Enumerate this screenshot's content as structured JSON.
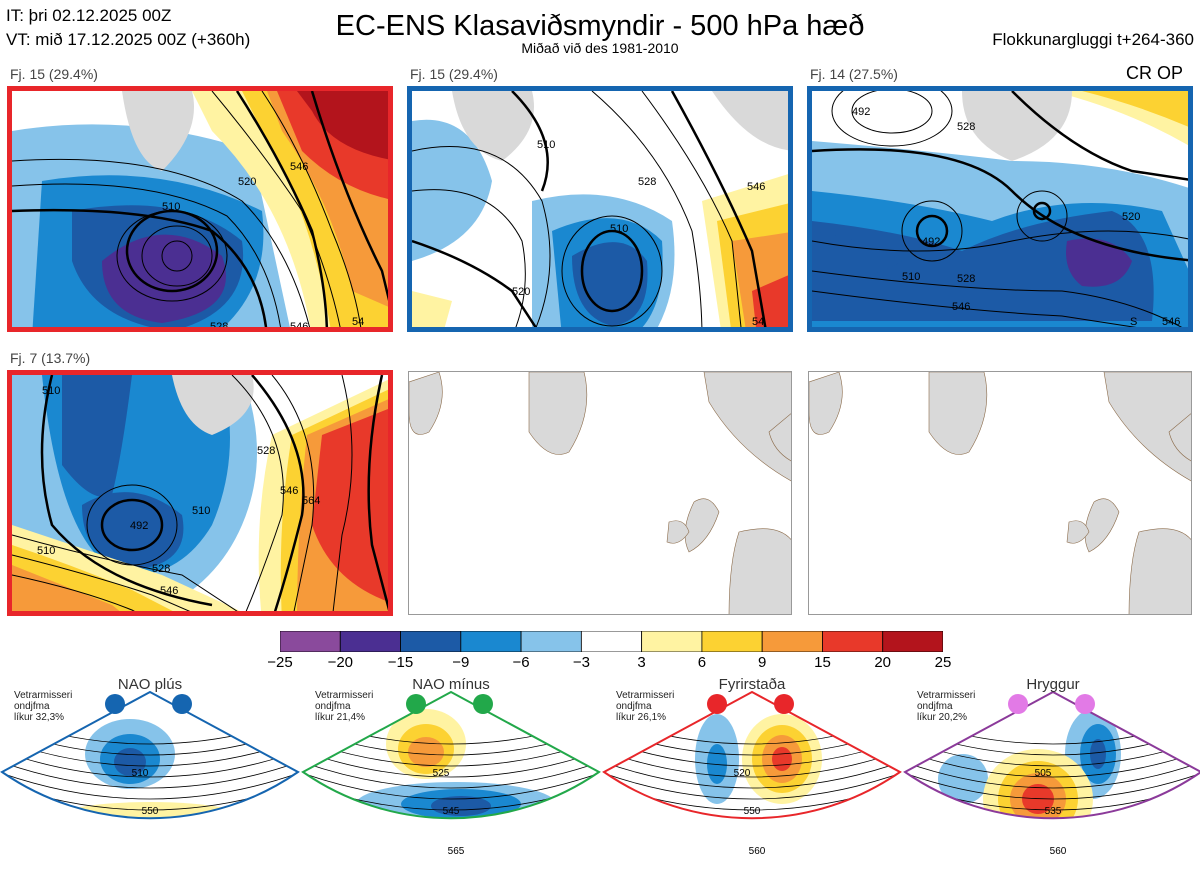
{
  "header": {
    "it": "IT: þri 02.12.2025 00Z",
    "vt": "VT: mið 17.12.2025 00Z  (+360h)",
    "title": "EC-ENS Klasaviðsmyndir - 500 hPa hæð",
    "subtitle": "Miðað við des 1981-2010",
    "window": "Flokkunargluggi t+264-360",
    "cr_op": "CR OP"
  },
  "panels": [
    {
      "label": "Fj. 15 (29.4%)",
      "frame": "red"
    },
    {
      "label": "Fj. 15 (29.4%)",
      "frame": "blue"
    },
    {
      "label": "Fj. 14 (27.5%)",
      "frame": "blue"
    },
    {
      "label": "Fj. 7 (13.7%)",
      "frame": "red"
    },
    {
      "label": "",
      "frame": "none"
    },
    {
      "label": "",
      "frame": "none"
    }
  ],
  "contour_labels": {
    "p1": [
      "510",
      "520",
      "546",
      "528",
      "546",
      "54"
    ],
    "p2": [
      "510",
      "520",
      "528",
      "546",
      "510",
      "54"
    ],
    "p3": [
      "492",
      "510",
      "528",
      "546",
      "520",
      "528",
      "546",
      "S"
    ],
    "p4": [
      "510",
      "492",
      "510",
      "528",
      "546",
      "546",
      "564",
      "510",
      "528"
    ]
  },
  "chart_data": {
    "type": "heatmap",
    "title": "EC-ENS Klasaviðsmyndir - 500 hPa hæð",
    "colorbar": {
      "ticks": [
        "−25",
        "−20",
        "−15",
        "−9",
        "−6",
        "−3",
        "3",
        "6",
        "9",
        "15",
        "20",
        "25"
      ],
      "colors": [
        "#8a4a9c",
        "#4b2f92",
        "#1c5aa6",
        "#1a88d0",
        "#86c3ea",
        "#ffffff",
        "#fff3a2",
        "#fcd232",
        "#f69a3a",
        "#e8392a",
        "#b3141c"
      ]
    }
  },
  "regimes": [
    {
      "name": "NAO plús",
      "stats": [
        "Vetrarmisseri",
        "ondjfma",
        "líkur 32,3%"
      ],
      "dot_color": "#1565b0",
      "frame_color": "#1565b0",
      "labels": [
        "510",
        "550"
      ]
    },
    {
      "name": "NAO mínus",
      "stats": [
        "Vetrarmisseri",
        "ondjfma",
        "líkur 21,4%"
      ],
      "dot_color": "#22a84a",
      "frame_color": "#22a84a",
      "labels": [
        "525",
        "545",
        "565"
      ]
    },
    {
      "name": "Fyrirstaða",
      "stats": [
        "Vetrarmisseri",
        "ondjfma",
        "líkur 26,1%"
      ],
      "dot_color": "#e8262a",
      "frame_color": "#e8262a",
      "labels": [
        "520",
        "550",
        "560"
      ]
    },
    {
      "name": "Hryggur",
      "stats": [
        "Vetrarmisseri",
        "ondjfma",
        "líkur 20,2%"
      ],
      "dot_color": "#e27ae6",
      "frame_color": "#8b3a9a",
      "labels": [
        "505",
        "535",
        "560"
      ]
    }
  ]
}
